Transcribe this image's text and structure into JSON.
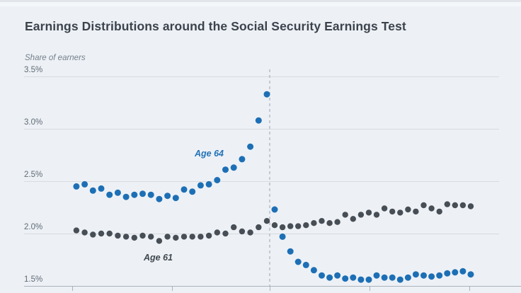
{
  "title": "Earnings Distributions around the Social Security Earnings Test",
  "chart_data": {
    "type": "scatter",
    "title": "Earnings Distributions around the Social Security Earnings Test",
    "ylabel": "Share of earners",
    "xlabel": "",
    "ylim": [
      1.5,
      3.5
    ],
    "grid": true,
    "legend_position": "inline-annotations",
    "y_ticks": [
      {
        "label": "3.5%",
        "value": 3.5
      },
      {
        "label": "3.0%",
        "value": 3.0
      },
      {
        "label": "2.5%",
        "value": 2.5
      },
      {
        "label": "2.0%",
        "value": 2.0
      },
      {
        "label": "1.5%",
        "value": 1.5
      }
    ],
    "x_tick_labels_visible": false,
    "reference_line": {
      "style": "dashed",
      "orientation": "vertical",
      "at_point_gap": 24
    },
    "series": [
      {
        "name": "Age 64",
        "color": "#1d6fb5",
        "values": [
          2.45,
          2.47,
          2.41,
          2.43,
          2.37,
          2.39,
          2.35,
          2.37,
          2.38,
          2.37,
          2.33,
          2.36,
          2.34,
          2.42,
          2.4,
          2.46,
          2.47,
          2.51,
          2.61,
          2.63,
          2.71,
          2.83,
          3.08,
          3.33,
          2.23,
          1.97,
          1.83,
          1.73,
          1.7,
          1.65,
          1.6,
          1.58,
          1.6,
          1.57,
          1.58,
          1.56,
          1.56,
          1.6,
          1.58,
          1.58,
          1.56,
          1.58,
          1.61,
          1.6,
          1.59,
          1.6,
          1.62,
          1.63,
          1.64,
          1.61
        ]
      },
      {
        "name": "Age 61",
        "color": "#474e55",
        "values": [
          2.03,
          2.01,
          1.99,
          2.0,
          2.0,
          1.98,
          1.97,
          1.96,
          1.98,
          1.97,
          1.93,
          1.97,
          1.96,
          1.97,
          1.97,
          1.97,
          1.98,
          2.01,
          2.0,
          2.06,
          2.02,
          2.01,
          2.06,
          2.12,
          2.08,
          2.06,
          2.07,
          2.07,
          2.08,
          2.1,
          2.12,
          2.1,
          2.11,
          2.18,
          2.14,
          2.18,
          2.2,
          2.18,
          2.24,
          2.21,
          2.2,
          2.23,
          2.21,
          2.27,
          2.24,
          2.21,
          2.28,
          2.27,
          2.27,
          2.26
        ]
      }
    ]
  },
  "colors": {
    "background": "#edf1f6",
    "age64_blue": "#1d6fb5",
    "age61_gray": "#474e55",
    "gridline": "#d7dbdf",
    "axis": "#a9b1b9",
    "title_text": "#3c434c"
  }
}
